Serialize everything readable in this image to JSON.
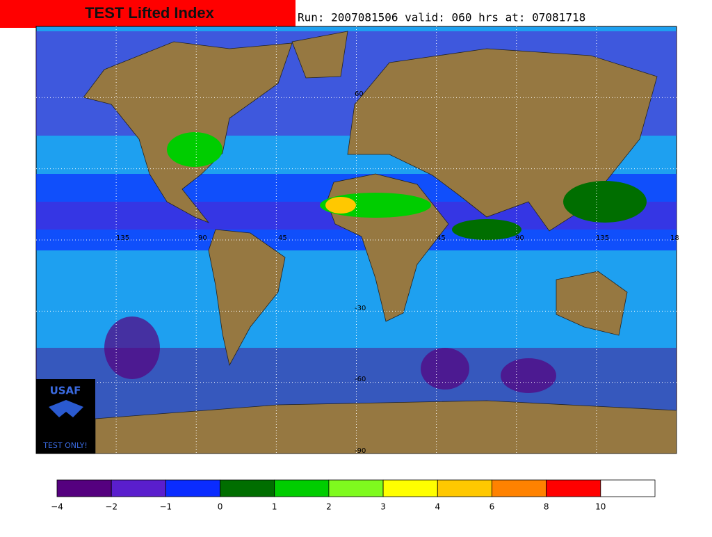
{
  "header": {
    "title": "TEST Lifted Index",
    "run_info": "Run: 2007081506 valid: 060 hrs at: 07081718"
  },
  "map": {
    "lon_labels": [
      "135",
      "90",
      "45",
      "45",
      "90",
      "135",
      "18"
    ],
    "lat_labels": [
      "60",
      "-30",
      "-60",
      "-90"
    ],
    "logo": {
      "name": "USAF",
      "note": "TEST ONLY!"
    }
  },
  "colorbar": {
    "colors": [
      "#55007f",
      "#5a1ecd",
      "#0a2cff",
      "#006e00",
      "#00cd00",
      "#7ffa1e",
      "#ffff00",
      "#ffc800",
      "#ff8200",
      "#ff0000",
      "#ffffff"
    ],
    "ticks": [
      {
        "value": -4,
        "label": "−4"
      },
      {
        "value": -2,
        "label": "−2"
      },
      {
        "value": -1,
        "label": "−1"
      },
      0,
      1,
      2,
      3,
      4,
      6,
      8,
      10
    ]
  }
}
